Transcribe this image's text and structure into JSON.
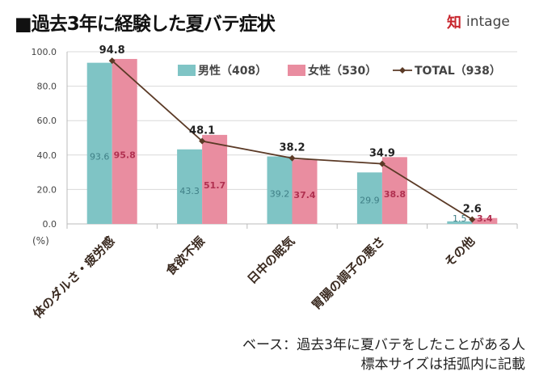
{
  "title": "■過去3年に経験した夏バテ症状",
  "logo": {
    "mark": "知",
    "word": "intage"
  },
  "note": {
    "line1": "ベース：過去3年に夏バテをしたことがある人",
    "line2": "標本サイズは括弧内に記載"
  },
  "chart_data": {
    "type": "bar",
    "title": "過去3年に経験した夏バテ症状",
    "ylabel": "(%)",
    "ylim": [
      0,
      100
    ],
    "yticks": [
      "0.0",
      "20.0",
      "40.0",
      "60.0",
      "80.0",
      "100.0"
    ],
    "categories": [
      "体のダルさ・疲労感",
      "食欲不振",
      "日中の眠気",
      "胃腸の調子の悪さ",
      "その他"
    ],
    "series": [
      {
        "name": "男性（408）",
        "kind": "bar",
        "color": "#7fc4c5",
        "label_color": "#3f7f86",
        "values": [
          93.6,
          43.3,
          39.2,
          29.9,
          1.5
        ]
      },
      {
        "name": "女性（530）",
        "kind": "bar",
        "color": "#e98da0",
        "label_color": "#b03050",
        "values": [
          95.8,
          51.7,
          37.4,
          38.8,
          3.4
        ]
      },
      {
        "name": "TOTAL（938）",
        "kind": "line",
        "color": "#5b3a26",
        "label_color": "#222222",
        "values": [
          94.8,
          48.1,
          38.2,
          34.9,
          2.6
        ]
      }
    ],
    "legend_position": "top-right",
    "grid": true
  }
}
